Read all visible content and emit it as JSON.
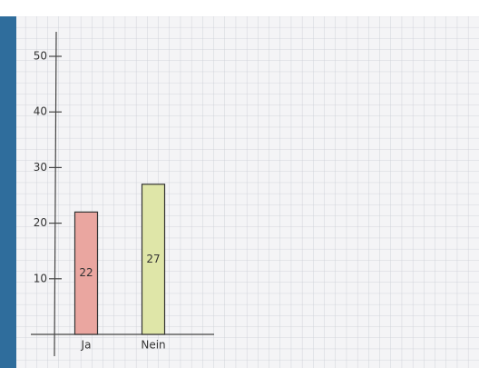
{
  "chart_data": {
    "type": "bar",
    "categories": [
      "Ja",
      "Nein"
    ],
    "values": [
      22,
      27
    ],
    "value_labels": [
      "22",
      "27"
    ],
    "colors": [
      "#eaa6a0",
      "#dfe6a8"
    ],
    "ylim": [
      0,
      50
    ],
    "yticks": [
      10,
      20,
      30,
      40,
      50
    ],
    "grid": false
  }
}
